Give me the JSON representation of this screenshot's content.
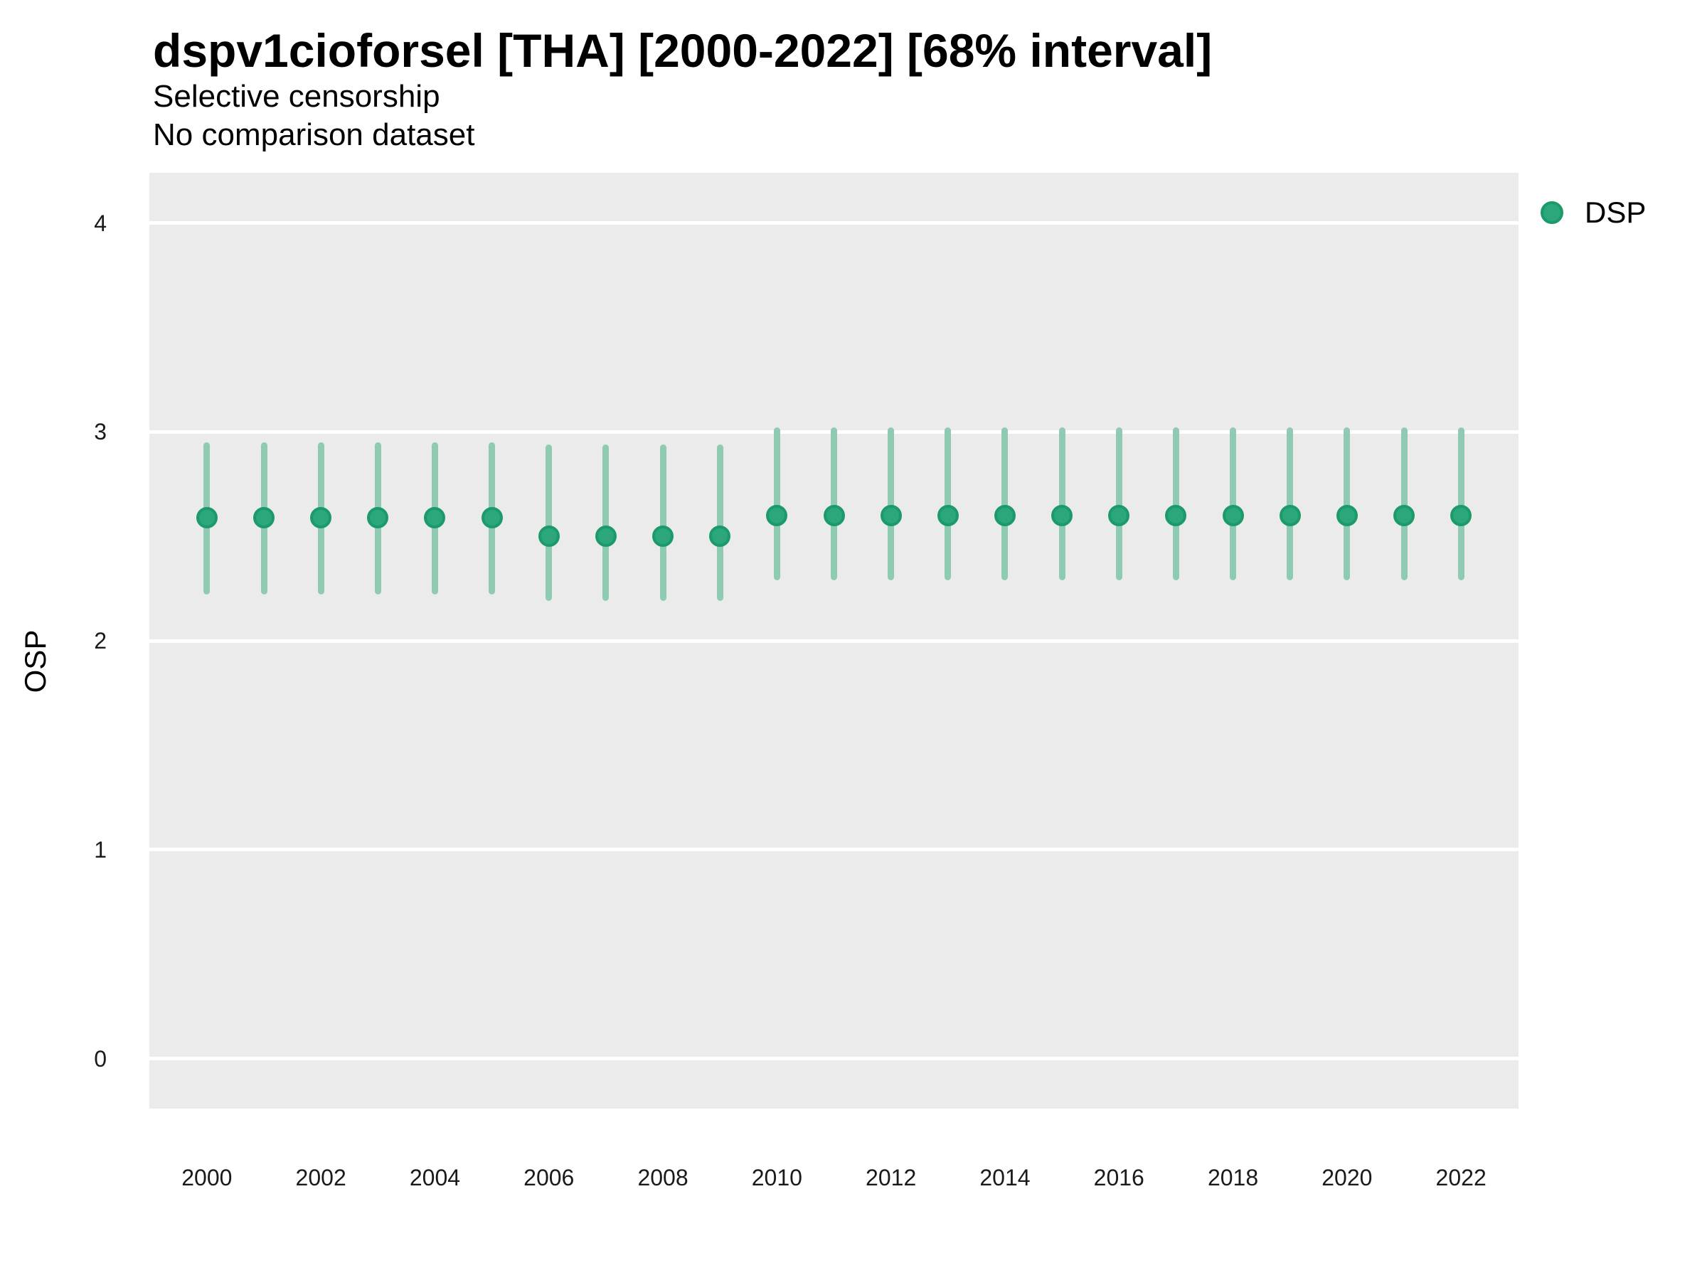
{
  "chart_data": {
    "type": "scatter",
    "subtype": "pointrange",
    "title": "dspv1cioforsel [THA] [2000-2022] [68% interval]",
    "subtitle": [
      "Selective censorship",
      "No comparison dataset"
    ],
    "xlabel": "",
    "ylabel": "OSP",
    "ylim": [
      -0.24,
      4.24
    ],
    "yticks": [
      0,
      1,
      2,
      3,
      4
    ],
    "xticks": [
      2000,
      2002,
      2004,
      2006,
      2008,
      2010,
      2012,
      2014,
      2016,
      2018,
      2020,
      2022
    ],
    "grid": "major-horizontal-white-on-gray",
    "legend": {
      "position": "top-right",
      "entries": [
        {
          "label": "DSP",
          "color": "#2BA77B"
        }
      ]
    },
    "colors": {
      "point_fill": "#2BA77B",
      "point_ring": "#1D9A69",
      "errorbar": "#8FCBB2",
      "panel_bg": "#EBEBEB",
      "gridline": "#FFFFFF"
    },
    "series": [
      {
        "name": "DSP",
        "interval": "68%",
        "points": [
          {
            "x": 2000,
            "y": 2.59,
            "lo": 2.22,
            "hi": 2.95
          },
          {
            "x": 2001,
            "y": 2.59,
            "lo": 2.22,
            "hi": 2.95
          },
          {
            "x": 2002,
            "y": 2.59,
            "lo": 2.22,
            "hi": 2.95
          },
          {
            "x": 2003,
            "y": 2.59,
            "lo": 2.22,
            "hi": 2.95
          },
          {
            "x": 2004,
            "y": 2.59,
            "lo": 2.22,
            "hi": 2.95
          },
          {
            "x": 2005,
            "y": 2.59,
            "lo": 2.22,
            "hi": 2.95
          },
          {
            "x": 2006,
            "y": 2.5,
            "lo": 2.19,
            "hi": 2.94
          },
          {
            "x": 2007,
            "y": 2.5,
            "lo": 2.19,
            "hi": 2.94
          },
          {
            "x": 2008,
            "y": 2.5,
            "lo": 2.19,
            "hi": 2.94
          },
          {
            "x": 2009,
            "y": 2.5,
            "lo": 2.19,
            "hi": 2.94
          },
          {
            "x": 2010,
            "y": 2.6,
            "lo": 2.29,
            "hi": 3.02
          },
          {
            "x": 2011,
            "y": 2.6,
            "lo": 2.29,
            "hi": 3.02
          },
          {
            "x": 2012,
            "y": 2.6,
            "lo": 2.29,
            "hi": 3.02
          },
          {
            "x": 2013,
            "y": 2.6,
            "lo": 2.29,
            "hi": 3.02
          },
          {
            "x": 2014,
            "y": 2.6,
            "lo": 2.29,
            "hi": 3.02
          },
          {
            "x": 2015,
            "y": 2.6,
            "lo": 2.29,
            "hi": 3.02
          },
          {
            "x": 2016,
            "y": 2.6,
            "lo": 2.29,
            "hi": 3.02
          },
          {
            "x": 2017,
            "y": 2.6,
            "lo": 2.29,
            "hi": 3.02
          },
          {
            "x": 2018,
            "y": 2.6,
            "lo": 2.29,
            "hi": 3.02
          },
          {
            "x": 2019,
            "y": 2.6,
            "lo": 2.29,
            "hi": 3.02
          },
          {
            "x": 2020,
            "y": 2.6,
            "lo": 2.29,
            "hi": 3.02
          },
          {
            "x": 2021,
            "y": 2.6,
            "lo": 2.29,
            "hi": 3.02
          },
          {
            "x": 2022,
            "y": 2.6,
            "lo": 2.29,
            "hi": 3.02
          }
        ]
      }
    ]
  }
}
